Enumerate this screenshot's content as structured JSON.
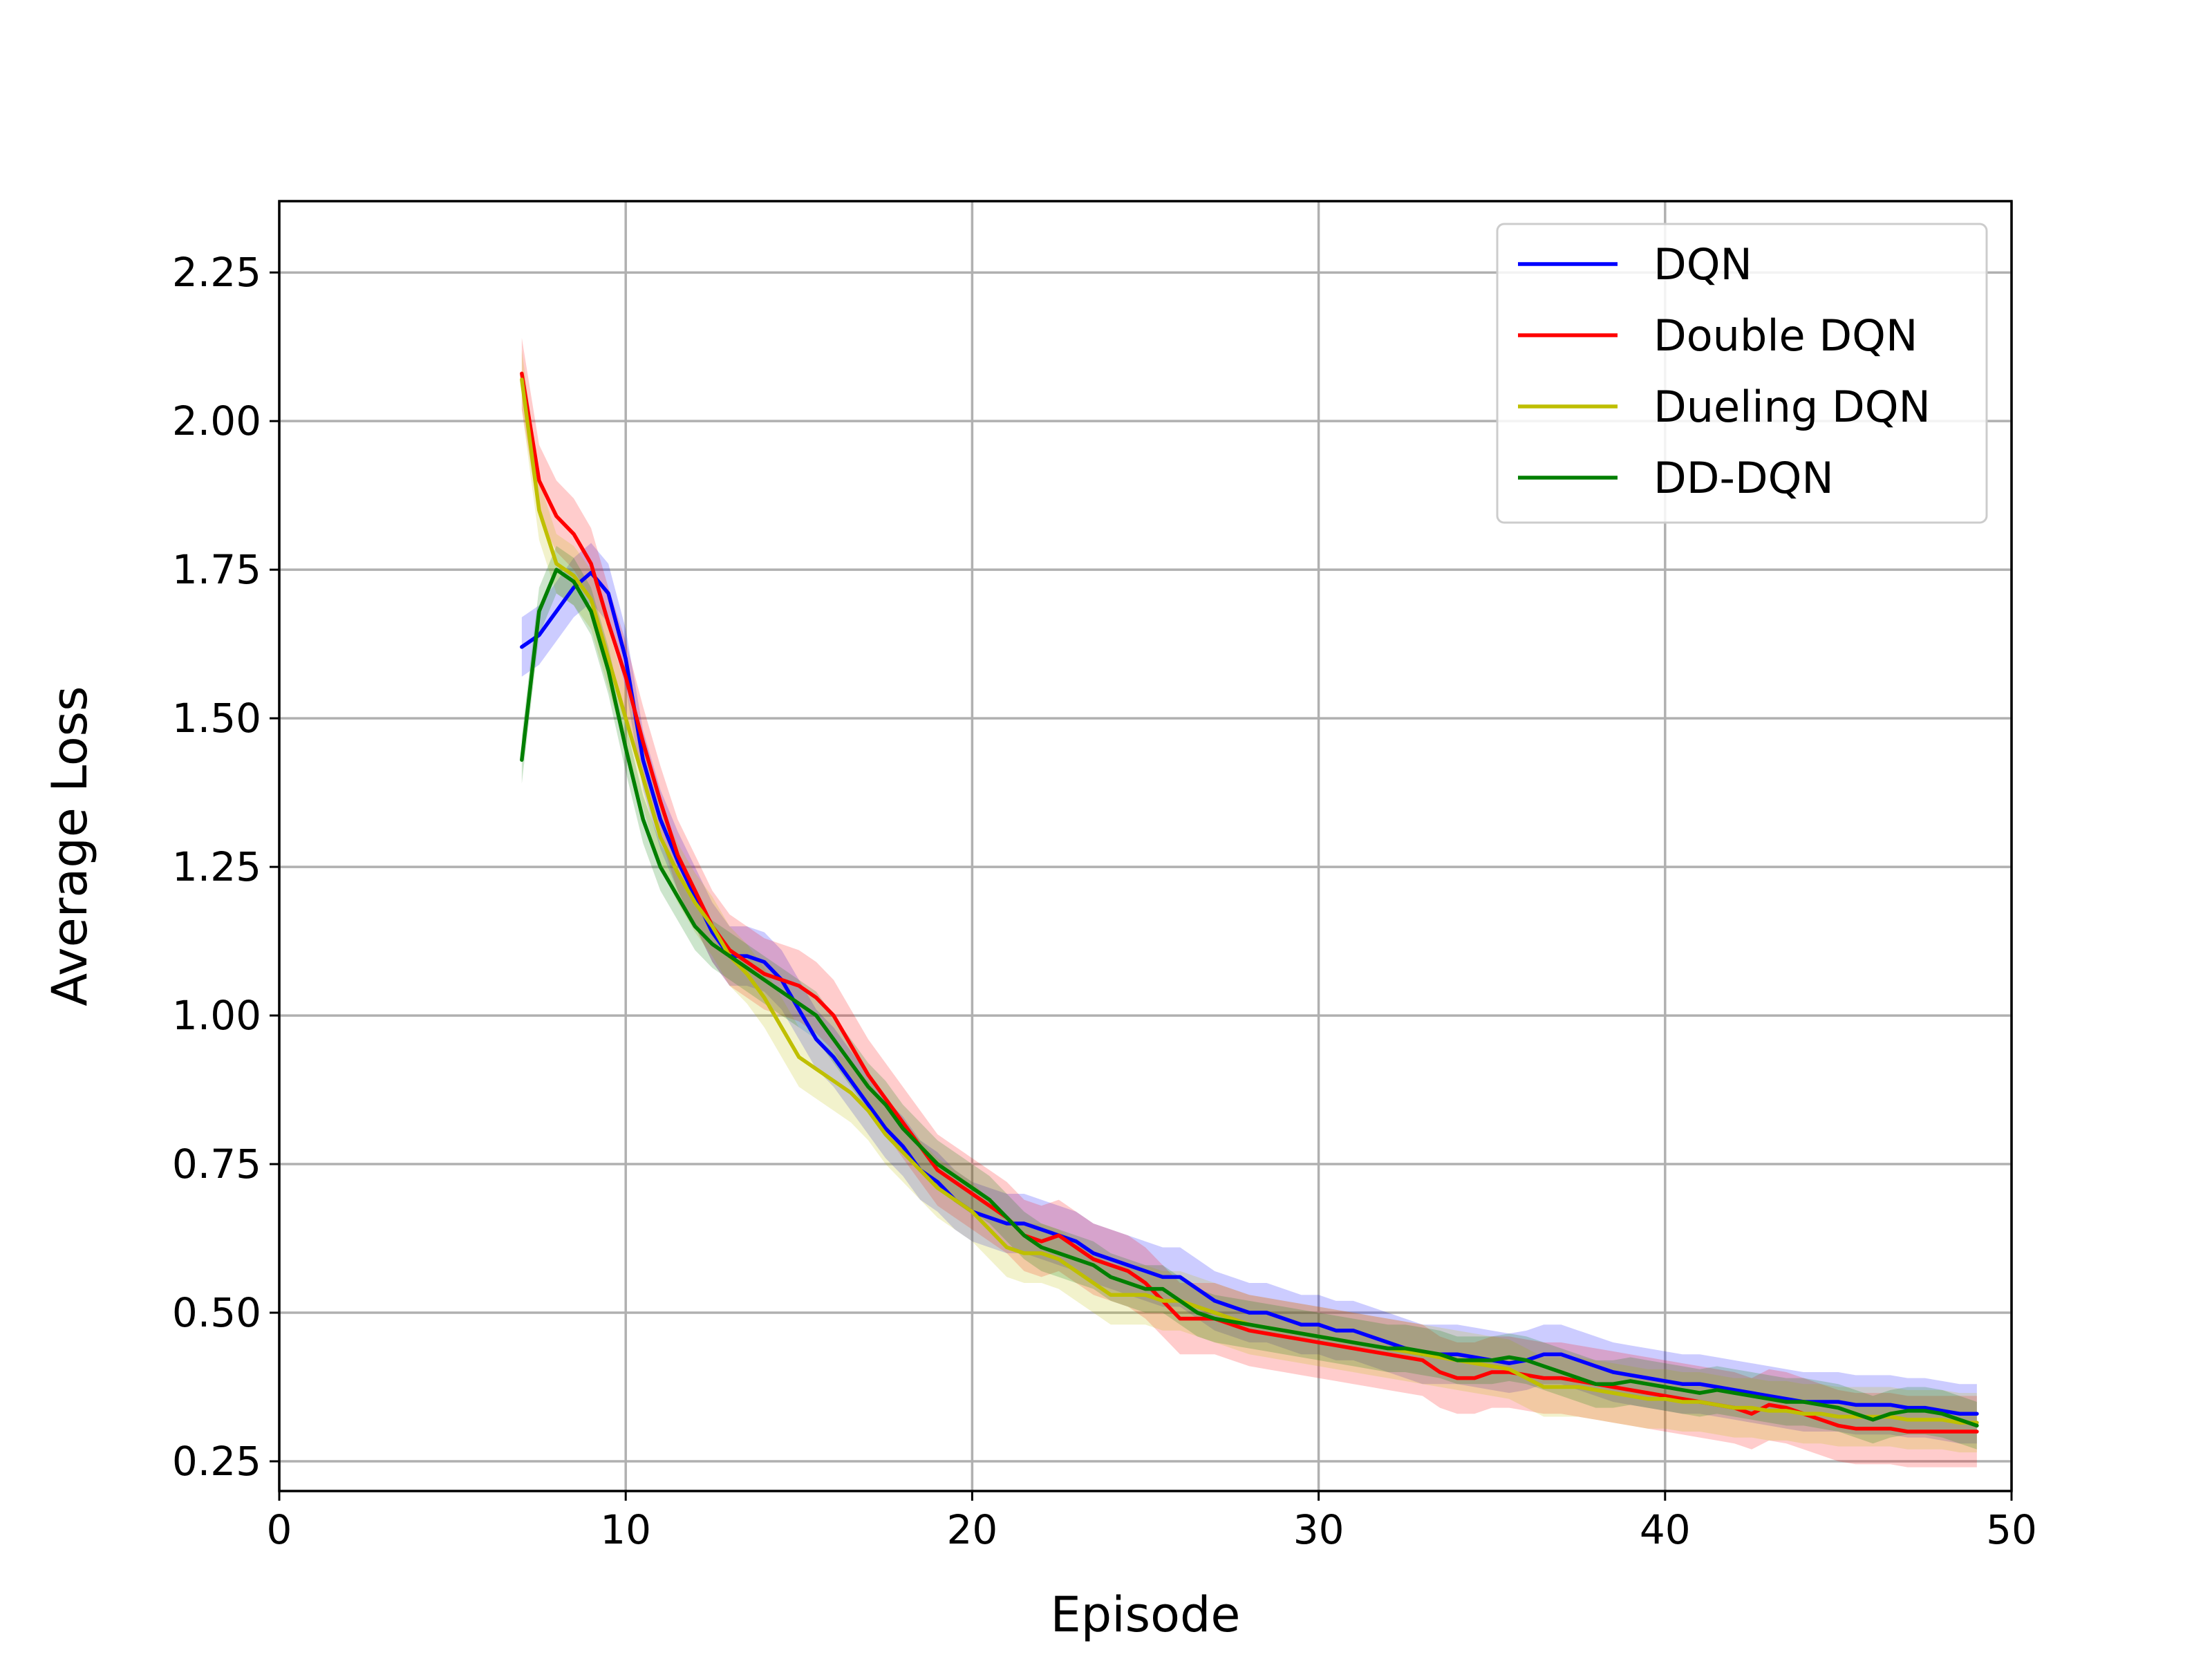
{
  "chart_data": {
    "type": "line",
    "title": "",
    "xlabel": "Episode",
    "ylabel": "Average Loss",
    "xlim": [
      0,
      50
    ],
    "ylim": [
      0.2,
      2.37
    ],
    "xticks": [
      0,
      10,
      20,
      30,
      40,
      50
    ],
    "xtick_labels": [
      "0",
      "10",
      "20",
      "30",
      "40",
      "50"
    ],
    "yticks": [
      0.25,
      0.5,
      0.75,
      1.0,
      1.25,
      1.5,
      1.75,
      2.0,
      2.25
    ],
    "ytick_labels": [
      "0.25",
      "0.50",
      "0.75",
      "1.00",
      "1.25",
      "1.50",
      "1.75",
      "2.00",
      "2.25"
    ],
    "grid": true,
    "legend_position": "top-right",
    "x": [
      7,
      7.5,
      8,
      8.5,
      9,
      9.5,
      10,
      10.5,
      11,
      11.5,
      12,
      12.5,
      13,
      13.5,
      14,
      14.5,
      15,
      15.5,
      16,
      16.5,
      17,
      17.5,
      18,
      18.5,
      19,
      19.5,
      20,
      20.5,
      21,
      21.5,
      22,
      22.5,
      23,
      23.5,
      24,
      24.5,
      25,
      25.5,
      26,
      26.5,
      27,
      27.5,
      28,
      28.5,
      29,
      29.5,
      30,
      30.5,
      31,
      31.5,
      32,
      32.5,
      33,
      33.5,
      34,
      34.5,
      35,
      35.5,
      36,
      36.5,
      37,
      37.5,
      38,
      38.5,
      39,
      39.5,
      40,
      40.5,
      41,
      41.5,
      42,
      42.5,
      43,
      43.5,
      44,
      44.5,
      45,
      45.5,
      46,
      46.5,
      47,
      47.5,
      48,
      48.5,
      49
    ],
    "series": [
      {
        "name": "DQN",
        "color": "#0000ff",
        "band": 0.05,
        "values": [
          1.62,
          1.64,
          1.68,
          1.72,
          1.745,
          1.71,
          1.6,
          1.43,
          1.33,
          1.26,
          1.2,
          1.14,
          1.1,
          1.1,
          1.09,
          1.06,
          1.01,
          0.96,
          0.93,
          0.89,
          0.85,
          0.81,
          0.78,
          0.74,
          0.72,
          0.69,
          0.67,
          0.66,
          0.65,
          0.65,
          0.64,
          0.63,
          0.62,
          0.6,
          0.59,
          0.58,
          0.57,
          0.56,
          0.56,
          0.54,
          0.52,
          0.51,
          0.5,
          0.5,
          0.49,
          0.48,
          0.48,
          0.47,
          0.47,
          0.46,
          0.45,
          0.44,
          0.43,
          0.43,
          0.43,
          0.425,
          0.42,
          0.415,
          0.42,
          0.43,
          0.43,
          0.42,
          0.41,
          0.4,
          0.395,
          0.39,
          0.385,
          0.38,
          0.38,
          0.375,
          0.37,
          0.365,
          0.36,
          0.355,
          0.35,
          0.35,
          0.35,
          0.345,
          0.345,
          0.345,
          0.34,
          0.34,
          0.335,
          0.33,
          0.33
        ]
      },
      {
        "name": "Double DQN",
        "color": "#ff0000",
        "band": 0.06,
        "values": [
          2.08,
          1.9,
          1.84,
          1.81,
          1.76,
          1.66,
          1.57,
          1.46,
          1.36,
          1.27,
          1.21,
          1.15,
          1.11,
          1.09,
          1.07,
          1.06,
          1.05,
          1.03,
          1.0,
          0.95,
          0.9,
          0.86,
          0.82,
          0.78,
          0.74,
          0.72,
          0.7,
          0.68,
          0.66,
          0.63,
          0.62,
          0.63,
          0.61,
          0.59,
          0.58,
          0.57,
          0.55,
          0.52,
          0.49,
          0.49,
          0.49,
          0.48,
          0.47,
          0.465,
          0.46,
          0.455,
          0.45,
          0.445,
          0.44,
          0.435,
          0.43,
          0.425,
          0.42,
          0.4,
          0.39,
          0.39,
          0.4,
          0.4,
          0.395,
          0.39,
          0.39,
          0.385,
          0.38,
          0.375,
          0.37,
          0.365,
          0.36,
          0.355,
          0.35,
          0.345,
          0.34,
          0.33,
          0.345,
          0.34,
          0.33,
          0.32,
          0.31,
          0.305,
          0.305,
          0.305,
          0.3,
          0.3,
          0.3,
          0.3,
          0.3
        ]
      },
      {
        "name": "Dueling DQN",
        "color": "#bfbf00",
        "band": 0.05,
        "values": [
          2.07,
          1.85,
          1.76,
          1.74,
          1.7,
          1.6,
          1.5,
          1.4,
          1.3,
          1.24,
          1.19,
          1.15,
          1.1,
          1.07,
          1.03,
          0.98,
          0.93,
          0.91,
          0.89,
          0.87,
          0.84,
          0.8,
          0.77,
          0.74,
          0.71,
          0.69,
          0.67,
          0.64,
          0.61,
          0.6,
          0.6,
          0.59,
          0.57,
          0.55,
          0.53,
          0.53,
          0.53,
          0.52,
          0.52,
          0.51,
          0.5,
          0.49,
          0.48,
          0.475,
          0.47,
          0.465,
          0.46,
          0.455,
          0.45,
          0.445,
          0.44,
          0.435,
          0.43,
          0.425,
          0.42,
          0.415,
          0.41,
          0.405,
          0.39,
          0.375,
          0.375,
          0.375,
          0.37,
          0.365,
          0.36,
          0.355,
          0.355,
          0.35,
          0.35,
          0.345,
          0.34,
          0.34,
          0.335,
          0.335,
          0.33,
          0.33,
          0.325,
          0.325,
          0.325,
          0.325,
          0.32,
          0.32,
          0.32,
          0.315,
          0.315
        ]
      },
      {
        "name": "DD-DQN",
        "color": "#007f00",
        "band": 0.04,
        "values": [
          1.43,
          1.68,
          1.75,
          1.73,
          1.68,
          1.58,
          1.45,
          1.33,
          1.25,
          1.2,
          1.15,
          1.12,
          1.1,
          1.08,
          1.06,
          1.04,
          1.02,
          1.0,
          0.96,
          0.92,
          0.88,
          0.85,
          0.81,
          0.78,
          0.75,
          0.73,
          0.71,
          0.69,
          0.66,
          0.63,
          0.61,
          0.6,
          0.59,
          0.58,
          0.56,
          0.55,
          0.54,
          0.54,
          0.52,
          0.5,
          0.49,
          0.485,
          0.48,
          0.475,
          0.47,
          0.465,
          0.46,
          0.455,
          0.45,
          0.445,
          0.44,
          0.44,
          0.435,
          0.43,
          0.42,
          0.42,
          0.42,
          0.425,
          0.42,
          0.41,
          0.4,
          0.39,
          0.38,
          0.38,
          0.385,
          0.38,
          0.375,
          0.37,
          0.365,
          0.37,
          0.365,
          0.36,
          0.355,
          0.35,
          0.35,
          0.345,
          0.34,
          0.33,
          0.32,
          0.33,
          0.335,
          0.335,
          0.33,
          0.32,
          0.31
        ]
      }
    ]
  }
}
